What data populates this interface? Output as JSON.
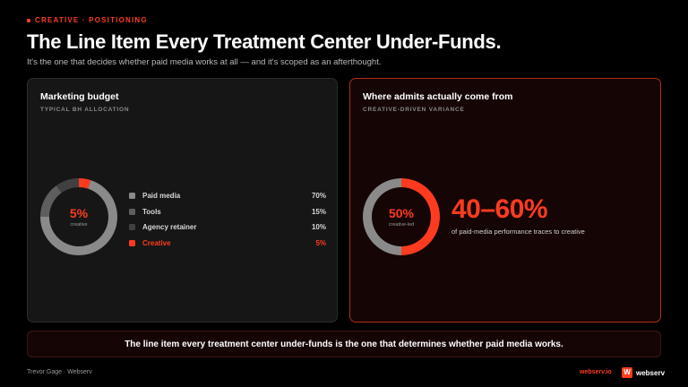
{
  "header": {
    "eyebrow": "CREATIVE · POSITIONING",
    "title": "The Line Item Every Treatment Center Under-Funds.",
    "subtitle": "It's the one that decides whether paid media works at all — and it's scoped as an afterthought."
  },
  "budget_card": {
    "title": "Marketing budget",
    "subtitle": "TYPICAL BH ALLOCATION",
    "donut_pct": "5%",
    "donut_caption": "creative",
    "items": [
      {
        "label": "Paid media",
        "value": "70%",
        "share": 70,
        "color": "#8a8a8a"
      },
      {
        "label": "Tools",
        "value": "15%",
        "share": 15,
        "color": "#5e5e5e"
      },
      {
        "label": "Agency retainer",
        "value": "10%",
        "share": 10,
        "color": "#404040"
      },
      {
        "label": "Creative",
        "value": "5%",
        "share": 5,
        "color": "#ff3b1f"
      }
    ]
  },
  "variance_card": {
    "title": "Where admits actually come from",
    "subtitle": "CREATIVE-DRIVEN VARIANCE",
    "donut_pct": "50%",
    "donut_caption": "creative-led",
    "share": 50,
    "big_stat": "40–60%",
    "big_caption": "of paid-media performance traces to creative"
  },
  "banner": {
    "text": "The line item every treatment center under-funds is the one that determines whether paid media works."
  },
  "footer": {
    "author": "Trevor Gage · Webserv",
    "link": "webserv.io",
    "brand_logo": "W",
    "brand_name": "webserv"
  },
  "colors": {
    "accent": "#ff3b1f",
    "track": "#8a8a8a"
  }
}
